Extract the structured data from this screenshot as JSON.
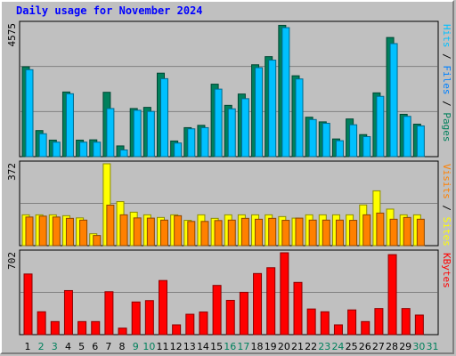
{
  "title": "Daily usage for November 2024",
  "colors": {
    "pages": "#00805c",
    "files": "#0080ff",
    "hits": "#00c0ff",
    "sites": "#ff8000",
    "visits": "#ffff00",
    "kbytes": "#ff0000",
    "weekday_label": "#000000",
    "weekend_label": "#00805c"
  },
  "chart_data": [
    {
      "type": "bar",
      "panel": "hits_files_pages",
      "categories": [
        "1",
        "2",
        "3",
        "4",
        "5",
        "6",
        "7",
        "8",
        "9",
        "10",
        "11",
        "12",
        "13",
        "14",
        "15",
        "16",
        "17",
        "18",
        "19",
        "20",
        "21",
        "22",
        "23",
        "24",
        "25",
        "26",
        "27",
        "28",
        "29",
        "30",
        "31"
      ],
      "weekend_days": [
        "2",
        "3",
        "9",
        "10",
        "16",
        "17",
        "23",
        "24",
        "30",
        "31"
      ],
      "ymax_label": "4575",
      "ylim": [
        0,
        4575
      ],
      "series": [
        {
          "name": "Pages",
          "values": [
            3100,
            900,
            570,
            2230,
            570,
            580,
            2220,
            370,
            1660,
            1700,
            2880,
            540,
            1000,
            1080,
            2500,
            1770,
            2160,
            3170,
            3450,
            4530,
            2790,
            1360,
            1200,
            610,
            1300,
            760,
            2200,
            4110,
            1460,
            1120,
            0
          ]
        },
        {
          "name": "Files",
          "values": [
            3000,
            790,
            500,
            2170,
            500,
            500,
            1660,
            230,
            1600,
            1560,
            2690,
            470,
            960,
            1000,
            2330,
            1650,
            2000,
            3070,
            3330,
            4450,
            2680,
            1280,
            1150,
            550,
            1100,
            690,
            2080,
            3900,
            1390,
            1060,
            0
          ]
        },
        {
          "name": "Hits",
          "values": [
            3000,
            790,
            500,
            2170,
            500,
            500,
            1660,
            230,
            1600,
            1560,
            2690,
            470,
            960,
            1000,
            2330,
            1650,
            2000,
            3070,
            3330,
            4450,
            2680,
            1280,
            1150,
            550,
            1100,
            690,
            2080,
            3900,
            1390,
            1060,
            0
          ]
        }
      ],
      "side_labels": [
        "Pages",
        "Files",
        "Hits"
      ]
    },
    {
      "type": "bar",
      "panel": "visits_sites",
      "categories": [
        "1",
        "2",
        "3",
        "4",
        "5",
        "6",
        "7",
        "8",
        "9",
        "10",
        "11",
        "12",
        "13",
        "14",
        "15",
        "16",
        "17",
        "18",
        "19",
        "20",
        "21",
        "22",
        "23",
        "24",
        "25",
        "26",
        "27",
        "28",
        "29",
        "30",
        "31"
      ],
      "ymax_label": "372",
      "ylim": [
        0,
        372
      ],
      "series": [
        {
          "name": "Visits",
          "values": [
            140,
            140,
            140,
            136,
            126,
            54,
            372,
            200,
            152,
            140,
            128,
            140,
            115,
            140,
            124,
            140,
            140,
            140,
            140,
            132,
            125,
            140,
            140,
            140,
            140,
            185,
            249,
            166,
            140,
            140,
            0
          ]
        },
        {
          "name": "Sites",
          "values": [
            130,
            134,
            130,
            124,
            116,
            46,
            184,
            140,
            126,
            125,
            116,
            136,
            110,
            110,
            114,
            116,
            124,
            120,
            124,
            115,
            125,
            116,
            116,
            116,
            115,
            140,
            148,
            120,
            128,
            120,
            0
          ]
        }
      ],
      "side_labels": [
        "Sites",
        "Visits"
      ]
    },
    {
      "type": "bar",
      "panel": "kbytes",
      "categories": [
        "1",
        "2",
        "3",
        "4",
        "5",
        "6",
        "7",
        "8",
        "9",
        "10",
        "11",
        "12",
        "13",
        "14",
        "15",
        "16",
        "17",
        "18",
        "19",
        "20",
        "21",
        "22",
        "23",
        "24",
        "25",
        "26",
        "27",
        "28",
        "29",
        "30",
        "31"
      ],
      "ymax_label": "702",
      "ylim": [
        0,
        702
      ],
      "series": [
        {
          "name": "KBytes",
          "values": [
            520,
            196,
            112,
            378,
            112,
            112,
            368,
            56,
            280,
            292,
            464,
            84,
            175,
            194,
            422,
            294,
            363,
            524,
            574,
            702,
            448,
            220,
            196,
            84,
            212,
            112,
            224,
            686,
            224,
            168,
            0
          ]
        }
      ],
      "side_labels": [
        "KBytes"
      ]
    }
  ]
}
